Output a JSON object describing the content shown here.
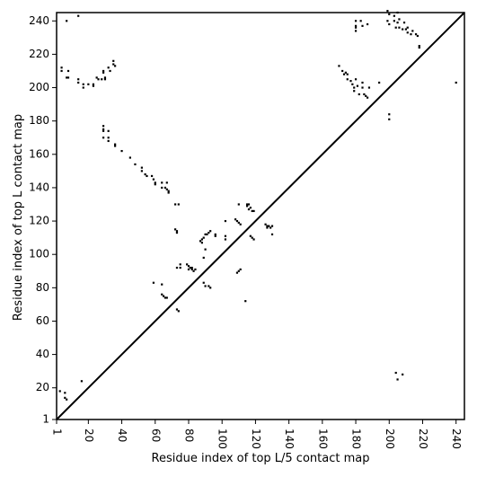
{
  "chart_data": {
    "type": "scatter",
    "xlabel": "Residue index of top L/5 contact map",
    "ylabel": "Residue index of top L contact map",
    "xlim": [
      1,
      245
    ],
    "ylim": [
      1,
      245
    ],
    "x_ticks": [
      1,
      20,
      40,
      60,
      80,
      100,
      120,
      140,
      160,
      180,
      200,
      220,
      240
    ],
    "y_ticks": [
      1,
      20,
      40,
      60,
      80,
      100,
      120,
      140,
      160,
      180,
      200,
      220,
      240
    ],
    "diagonal": true,
    "grid": false,
    "series": [
      {
        "points": [
          [
            7,
            240
          ],
          [
            14,
            243
          ],
          [
            4,
            212
          ],
          [
            4,
            210
          ],
          [
            8,
            210
          ],
          [
            7,
            206
          ],
          [
            8,
            206
          ],
          [
            14,
            205
          ],
          [
            14,
            203
          ],
          [
            17,
            202
          ],
          [
            17,
            200
          ],
          [
            20,
            202
          ],
          [
            23,
            202
          ],
          [
            23,
            201
          ],
          [
            25,
            206
          ],
          [
            26,
            205
          ],
          [
            28,
            205
          ],
          [
            29,
            210
          ],
          [
            29,
            209
          ],
          [
            30,
            206
          ],
          [
            30,
            205
          ],
          [
            32,
            212
          ],
          [
            33,
            210
          ],
          [
            35,
            214
          ],
          [
            35,
            216
          ],
          [
            36,
            213
          ],
          [
            29,
            177
          ],
          [
            29,
            175
          ],
          [
            29,
            174
          ],
          [
            29,
            170
          ],
          [
            32,
            174
          ],
          [
            32,
            170
          ],
          [
            32,
            168
          ],
          [
            36,
            165
          ],
          [
            36,
            166
          ],
          [
            40,
            162
          ],
          [
            45,
            158
          ],
          [
            48,
            154
          ],
          [
            52,
            152
          ],
          [
            52,
            150
          ],
          [
            54,
            148
          ],
          [
            55,
            147
          ],
          [
            58,
            147
          ],
          [
            59,
            145
          ],
          [
            60,
            143
          ],
          [
            60,
            142
          ],
          [
            64,
            143
          ],
          [
            64,
            140
          ],
          [
            66,
            140
          ],
          [
            67,
            139
          ],
          [
            68,
            138
          ],
          [
            68,
            137
          ],
          [
            67,
            143
          ],
          [
            72,
            130
          ],
          [
            74,
            130
          ],
          [
            72,
            115
          ],
          [
            73,
            113
          ],
          [
            73,
            114
          ],
          [
            73,
            92
          ],
          [
            75,
            92
          ],
          [
            75,
            94
          ],
          [
            59,
            83
          ],
          [
            64,
            82
          ],
          [
            64,
            76
          ],
          [
            65,
            75
          ],
          [
            66,
            74
          ],
          [
            67,
            74
          ],
          [
            73,
            67
          ],
          [
            74,
            66
          ],
          [
            79,
            94
          ],
          [
            80,
            93
          ],
          [
            81,
            92
          ],
          [
            82,
            92
          ],
          [
            82,
            91
          ],
          [
            83,
            90
          ],
          [
            84,
            91
          ],
          [
            80,
            91
          ],
          [
            87,
            108
          ],
          [
            88,
            109
          ],
          [
            89,
            110
          ],
          [
            90,
            112
          ],
          [
            91,
            112
          ],
          [
            92,
            113
          ],
          [
            93,
            114
          ],
          [
            88,
            107
          ],
          [
            90,
            103
          ],
          [
            89,
            98
          ],
          [
            89,
            83
          ],
          [
            90,
            81
          ],
          [
            92,
            81
          ],
          [
            93,
            80
          ],
          [
            96,
            112
          ],
          [
            96,
            111
          ],
          [
            102,
            111
          ],
          [
            102,
            109
          ],
          [
            102,
            120
          ],
          [
            108,
            121
          ],
          [
            109,
            120
          ],
          [
            110,
            119
          ],
          [
            111,
            118
          ],
          [
            110,
            130
          ],
          [
            115,
            130
          ],
          [
            115,
            129
          ],
          [
            116,
            130
          ],
          [
            117,
            128
          ],
          [
            116,
            127
          ],
          [
            118,
            126
          ],
          [
            119,
            126
          ],
          [
            117,
            111
          ],
          [
            118,
            110
          ],
          [
            119,
            109
          ],
          [
            110,
            90
          ],
          [
            111,
            91
          ],
          [
            109,
            89
          ],
          [
            114,
            72
          ],
          [
            126,
            118
          ],
          [
            127,
            117
          ],
          [
            128,
            117
          ],
          [
            129,
            116
          ],
          [
            130,
            117
          ],
          [
            127,
            116
          ],
          [
            130,
            112
          ],
          [
            16,
            24
          ],
          [
            6,
            14
          ],
          [
            7,
            13
          ],
          [
            6,
            17
          ],
          [
            3,
            18
          ],
          [
            170,
            213
          ],
          [
            172,
            210
          ],
          [
            173,
            208
          ],
          [
            174,
            209
          ],
          [
            175,
            205
          ],
          [
            177,
            204
          ],
          [
            178,
            202
          ],
          [
            179,
            200
          ],
          [
            179,
            198
          ],
          [
            180,
            205
          ],
          [
            181,
            201
          ],
          [
            184,
            203
          ],
          [
            182,
            196
          ],
          [
            184,
            200
          ],
          [
            185,
            196
          ],
          [
            186,
            195
          ],
          [
            187,
            194
          ],
          [
            188,
            200
          ],
          [
            175,
            208
          ],
          [
            180,
            240
          ],
          [
            180,
            237
          ],
          [
            180,
            236
          ],
          [
            180,
            234
          ],
          [
            183,
            240
          ],
          [
            184,
            237
          ],
          [
            187,
            238
          ],
          [
            199,
            246
          ],
          [
            200,
            244
          ],
          [
            199,
            240
          ],
          [
            200,
            238
          ],
          [
            203,
            243
          ],
          [
            203,
            240
          ],
          [
            205,
            245
          ],
          [
            205,
            239
          ],
          [
            204,
            236
          ],
          [
            206,
            236
          ],
          [
            208,
            235
          ],
          [
            209,
            239
          ],
          [
            210,
            235
          ],
          [
            211,
            233
          ],
          [
            211,
            236
          ],
          [
            213,
            232
          ],
          [
            214,
            234
          ],
          [
            216,
            232
          ],
          [
            218,
            225
          ],
          [
            218,
            224
          ],
          [
            217,
            231
          ],
          [
            206,
            241
          ],
          [
            194,
            203
          ],
          [
            200,
            184
          ],
          [
            200,
            181
          ],
          [
            204,
            29
          ],
          [
            205,
            25
          ],
          [
            208,
            28
          ],
          [
            240,
            203
          ]
        ]
      }
    ]
  }
}
